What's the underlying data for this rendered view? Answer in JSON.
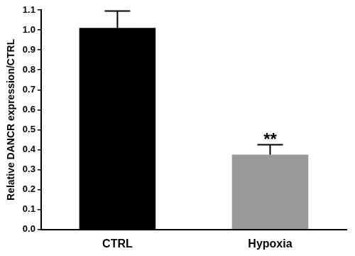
{
  "chart_data": {
    "type": "bar",
    "y_label": "Relative DANCR expression/CTRL",
    "categories": [
      "CTRL",
      "Hypoxia"
    ],
    "values": [
      1.01,
      0.375
    ],
    "errors": [
      0.085,
      0.05
    ],
    "colors": [
      "#000000",
      "#999999"
    ],
    "ylim": [
      0,
      1.1
    ],
    "yticks": [
      {
        "value": 0,
        "label": "0.0"
      },
      0.1,
      0.2,
      0.3,
      0.4,
      0.5,
      0.6,
      0.7,
      0.8,
      0.9,
      {
        "value": 1,
        "label": "1.0"
      },
      1.1
    ],
    "grid": false,
    "annotations": [
      {
        "text": "**",
        "category": "Hypoxia"
      }
    ]
  }
}
